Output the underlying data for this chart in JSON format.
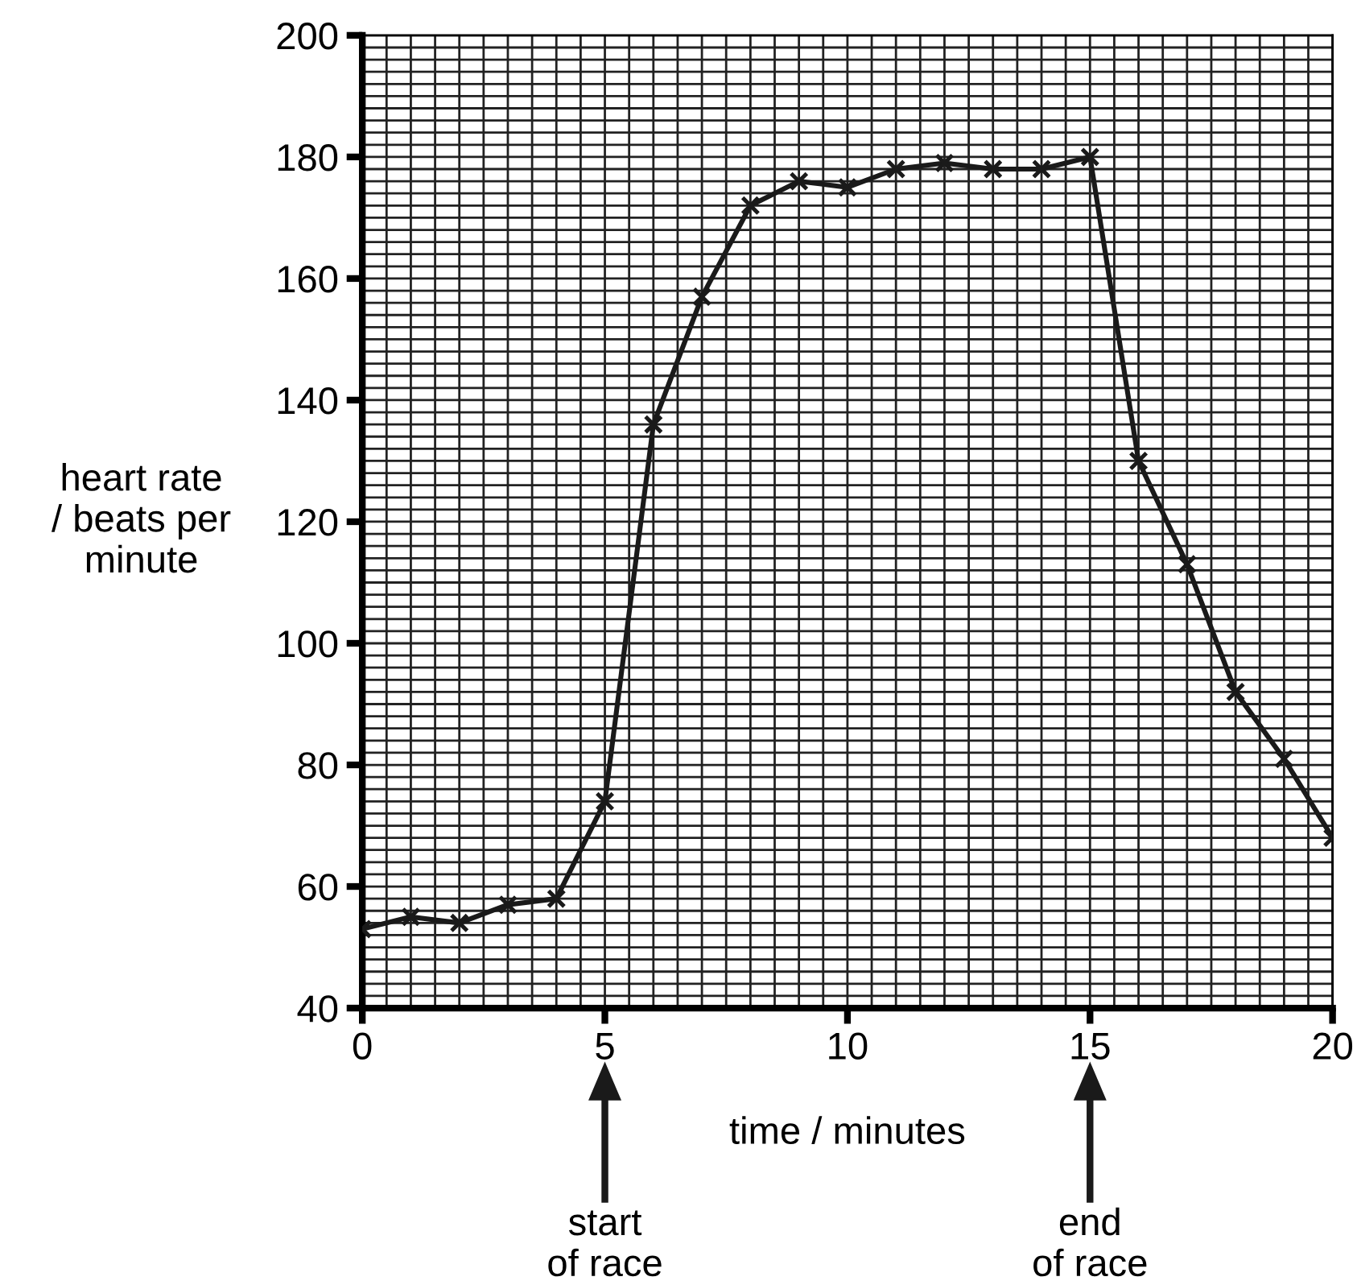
{
  "chart_data": {
    "type": "line",
    "xlabel": "time / minutes",
    "ylabel": "heart rate\n/ beats per\nminute",
    "x": [
      0,
      1,
      2,
      3,
      4,
      5,
      6,
      7,
      8,
      9,
      10,
      11,
      12,
      13,
      14,
      15,
      16,
      17,
      18,
      19,
      20
    ],
    "series": [
      {
        "color": "#1a1a1a",
        "values": [
          53,
          55,
          54,
          57,
          58,
          74,
          136,
          157,
          172,
          176,
          175,
          178,
          179,
          178,
          178,
          180,
          130,
          113,
          92,
          81,
          68
        ]
      }
    ],
    "xlim": [
      0,
      20
    ],
    "xticks": [
      0,
      5,
      10,
      15,
      20
    ],
    "ylim": [
      40,
      200
    ],
    "yticks": [
      40,
      60,
      80,
      100,
      120,
      140,
      160,
      180,
      200
    ],
    "grid": true,
    "marker": "cross",
    "line_style": "solid",
    "annotations": [
      "start\nof race",
      "end\nof race"
    ]
  }
}
